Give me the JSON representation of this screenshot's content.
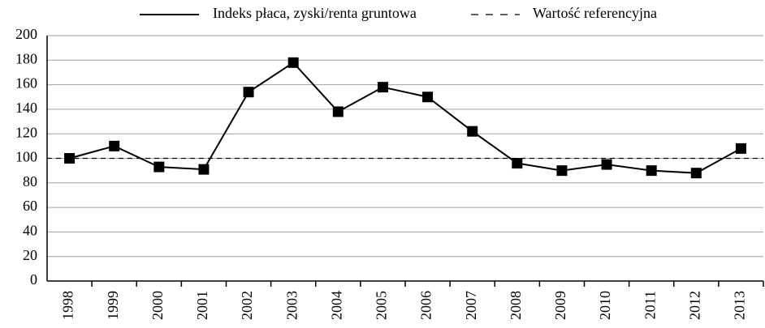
{
  "chart_data": {
    "type": "line",
    "categories": [
      "1998",
      "1999",
      "2000",
      "2001",
      "2002",
      "2003",
      "2004",
      "2005",
      "2006",
      "2007",
      "2008",
      "2009",
      "2010",
      "2011",
      "2012",
      "2013"
    ],
    "series": [
      {
        "name": "Indeks płaca, zyski/renta gruntowa",
        "color": "#000000",
        "values": [
          100,
          110,
          93,
          91,
          154,
          178,
          138,
          158,
          150,
          122,
          96,
          90,
          95,
          90,
          88,
          108
        ]
      }
    ],
    "reference": {
      "name": "Wartość referencyjna",
      "value": 100,
      "color": "#000000"
    },
    "ylim": [
      0,
      200
    ],
    "yticks": [
      0,
      20,
      40,
      60,
      80,
      100,
      120,
      140,
      160,
      180,
      200
    ],
    "grid": true,
    "legend": "top"
  }
}
